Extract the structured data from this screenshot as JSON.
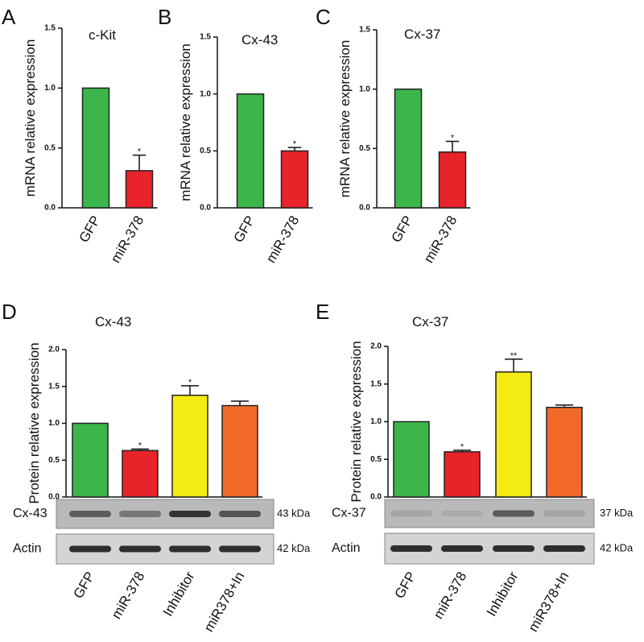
{
  "chart_data": [
    {
      "type": "bar",
      "panel": "A",
      "title": "c-Kit",
      "ylabel": "mRNA relative expression",
      "categories": [
        "GFP",
        "miR-378"
      ],
      "values": [
        1.0,
        0.31
      ],
      "errors": [
        0,
        0.13
      ],
      "annotations": [
        null,
        "*"
      ],
      "colors": [
        "#3cb54a",
        "#e8232a"
      ],
      "ylim": [
        0,
        1.5
      ],
      "yticks": [
        {
          "value": 0,
          "label": "0.0"
        },
        {
          "value": 0.5,
          "label": "0.5"
        },
        {
          "value": 1,
          "label": "1.0"
        },
        {
          "value": 1.5,
          "label": "1.5"
        }
      ]
    },
    {
      "type": "bar",
      "panel": "B",
      "title": "Cx-43",
      "ylabel": "mRNA relative expression",
      "categories": [
        "GFP",
        "miR-378"
      ],
      "values": [
        1.0,
        0.5
      ],
      "errors": [
        0,
        0.03
      ],
      "annotations": [
        null,
        "*"
      ],
      "colors": [
        "#3cb54a",
        "#e8232a"
      ],
      "ylim": [
        0,
        1.5
      ],
      "yticks": [
        {
          "value": 0,
          "label": "0.0"
        },
        {
          "value": 0.5,
          "label": "0.5"
        },
        {
          "value": 1,
          "label": "1.0"
        },
        {
          "value": 1.5,
          "label": "1.5"
        }
      ]
    },
    {
      "type": "bar",
      "panel": "C",
      "title": "Cx-37",
      "ylabel": "mRNA relative expression",
      "categories": [
        "GFP",
        "miR-378"
      ],
      "values": [
        1.0,
        0.47
      ],
      "errors": [
        0,
        0.09
      ],
      "annotations": [
        null,
        "*"
      ],
      "colors": [
        "#3cb54a",
        "#e8232a"
      ],
      "ylim": [
        0,
        1.5
      ],
      "yticks": [
        {
          "value": 0,
          "label": "0.0"
        },
        {
          "value": 0.5,
          "label": "0.5"
        },
        {
          "value": 1,
          "label": "1.0"
        },
        {
          "value": 1.5,
          "label": "1.5"
        }
      ]
    },
    {
      "type": "bar",
      "panel": "D",
      "title": "Cx-43",
      "ylabel": "Protein relative expression",
      "categories": [
        "GFP",
        "miR-378",
        "Inhibitor",
        "miR378+In"
      ],
      "values": [
        1.0,
        0.63,
        1.38,
        1.24
      ],
      "errors": [
        0,
        0.02,
        0.13,
        0.06
      ],
      "annotations": [
        null,
        "*",
        "*",
        null
      ],
      "colors": [
        "#3cb54a",
        "#e8232a",
        "#f5eb14",
        "#f26a2a"
      ],
      "ylim": [
        0,
        2
      ],
      "yticks": [
        {
          "value": 0,
          "label": "0.0"
        },
        {
          "value": 0.5,
          "label": "0.5"
        },
        {
          "value": 1,
          "label": "1.0"
        },
        {
          "value": 1.5,
          "label": "1.5"
        },
        {
          "value": 2,
          "label": "2.0"
        }
      ],
      "blots": [
        {
          "label": "Cx-43",
          "size": "43 kDa"
        },
        {
          "label": "Actin",
          "size": "42 kDa"
        }
      ]
    },
    {
      "type": "bar",
      "panel": "E",
      "title": "Cx-37",
      "ylabel": "Protein relative expression",
      "categories": [
        "GFP",
        "miR-378",
        "Inhibitor",
        "miR378+In"
      ],
      "values": [
        1.0,
        0.6,
        1.66,
        1.19
      ],
      "errors": [
        0,
        0.02,
        0.17,
        0.03
      ],
      "annotations": [
        null,
        "*",
        "**",
        null
      ],
      "colors": [
        "#3cb54a",
        "#e8232a",
        "#f5eb14",
        "#f26a2a"
      ],
      "ylim": [
        0,
        2
      ],
      "yticks": [
        {
          "value": 0,
          "label": "0.0"
        },
        {
          "value": 0.5,
          "label": "0.5"
        },
        {
          "value": 1,
          "label": "1.0"
        },
        {
          "value": 1.5,
          "label": "1.5"
        },
        {
          "value": 2,
          "label": "2.0"
        }
      ],
      "blots": [
        {
          "label": "Cx-37",
          "size": "37 kDa"
        },
        {
          "label": "Actin",
          "size": "42 kDa"
        }
      ]
    }
  ]
}
